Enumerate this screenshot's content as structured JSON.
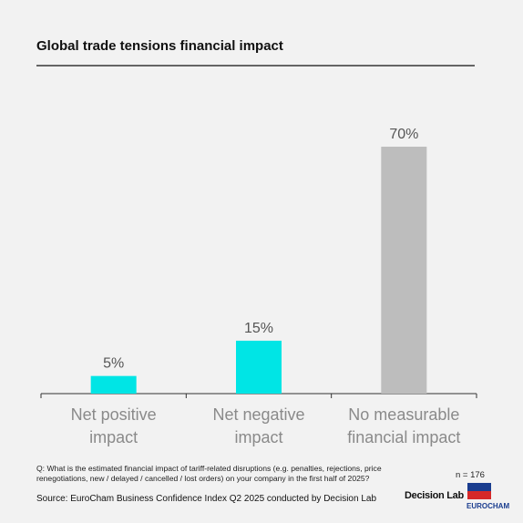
{
  "chart_data": {
    "type": "bar",
    "title": "Global trade tensions financial impact",
    "categories": [
      "Net positive impact",
      "Net negative impact",
      "No measurable financial impact"
    ],
    "values": [
      5,
      15,
      70
    ],
    "value_labels": [
      "5%",
      "15%",
      "70%"
    ],
    "colors": [
      "#00e5e5",
      "#00e5e5",
      "#bdbdbd"
    ],
    "note": "Q: What is the estimated financial impact of tariff-related disruptions (e.g. penalties, rejections, price renegotiations, new / delayed / cancelled / lost orders) on your company in the first half of 2025?",
    "source": "Source: EuroCham Business Confidence Index Q2 2025 conducted by Decision Lab",
    "sample_size": "n = 176",
    "logos": [
      "Decision Lab",
      "EUROCHAM"
    ]
  }
}
